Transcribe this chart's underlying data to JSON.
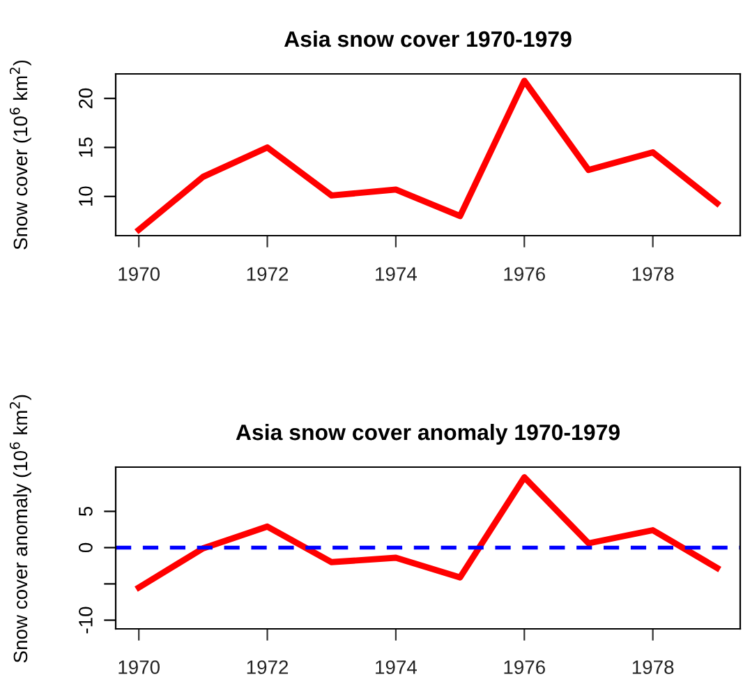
{
  "chart_data": [
    {
      "type": "line",
      "title": "Asia snow cover 1970-1979",
      "ylabel": "Snow cover (10$^{6}$ km$^{2}$)",
      "x": [
        1970,
        1971,
        1972,
        1973,
        1974,
        1975,
        1976,
        1977,
        1978,
        1979
      ],
      "series": [
        {
          "color": "#ff0000",
          "values": [
            6.6,
            12.0,
            15.0,
            10.1,
            10.7,
            8.0,
            21.8,
            12.7,
            14.5,
            9.3
          ]
        }
      ],
      "xlim": [
        1969.64,
        1979.36
      ],
      "xticks": [
        1970,
        1972,
        1974,
        1976,
        1978
      ],
      "ylim": [
        6.0,
        22.5
      ],
      "yticks": [
        10,
        15,
        20
      ],
      "grid": false,
      "legend": false,
      "line_style": "solid",
      "marker": "none"
    },
    {
      "type": "line",
      "title": "Asia snow cover anomaly 1970-1979",
      "ylabel": "Snow cover anomaly (10$^{6}$ km$^{2}$)",
      "x": [
        1970,
        1971,
        1972,
        1973,
        1974,
        1975,
        1976,
        1977,
        1978,
        1979
      ],
      "series": [
        {
          "color": "#ff0000",
          "values": [
            -5.5,
            -0.1,
            2.9,
            -2.0,
            -1.4,
            -4.1,
            9.7,
            0.6,
            2.4,
            -2.8
          ]
        }
      ],
      "xlim": [
        1969.64,
        1979.36
      ],
      "xticks": [
        1970,
        1972,
        1974,
        1976,
        1978
      ],
      "ylim": [
        -11.2,
        11.1
      ],
      "yticks": [
        -10,
        {
          "value": -5,
          "label": null
        },
        0,
        5
      ],
      "ref_lines": [
        {
          "axis": "y",
          "value": 0,
          "color": "#0000ff",
          "line_style": "dashed"
        }
      ],
      "grid": false,
      "legend": false,
      "line_style": "solid",
      "marker": "none"
    }
  ]
}
